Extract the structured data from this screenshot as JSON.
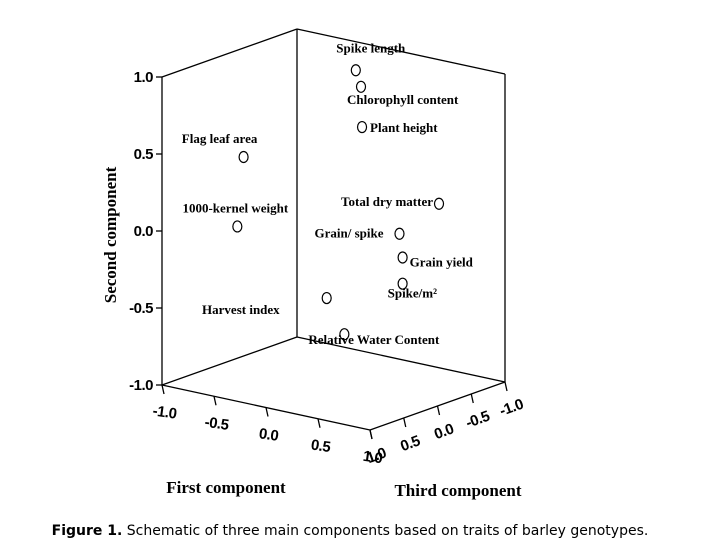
{
  "chart_data": {
    "type": "scatter3d",
    "x_label": "First component",
    "y_label": "Second component",
    "z_label": "Third component",
    "xlim": [
      -1,
      1
    ],
    "ylim": [
      -1,
      1
    ],
    "zlim": [
      -1,
      1
    ],
    "xticks": [
      {
        "value": -1,
        "label": "-1.0"
      },
      {
        "value": -0.5,
        "label": "-0.5"
      },
      {
        "value": 0,
        "label": "0.0"
      },
      {
        "value": 0.5,
        "label": "0.5"
      },
      {
        "value": 1,
        "label": "1.0"
      }
    ],
    "yticks": [
      {
        "value": -1,
        "label": "-1.0"
      },
      {
        "value": -0.5,
        "label": "-0.5"
      },
      {
        "value": 0,
        "label": "0.0"
      },
      {
        "value": 0.5,
        "label": "0.5"
      },
      {
        "value": 1,
        "label": "1.0"
      }
    ],
    "zticks": [
      {
        "value": 1,
        "label": "1.0"
      },
      {
        "value": 0.5,
        "label": "0.5"
      },
      {
        "value": 0,
        "label": "0.0"
      },
      {
        "value": -0.5,
        "label": "-0.5"
      },
      {
        "value": -1,
        "label": "-1.0"
      }
    ],
    "points": [
      {
        "label": "Spike length",
        "x": -0.11,
        "y": 0.94,
        "z": -0.5
      },
      {
        "label": "Chlorophyll content",
        "x": -0.06,
        "y": 0.84,
        "z": -0.5
      },
      {
        "label": "Plant height",
        "x": -0.05,
        "y": 0.58,
        "z": -0.5
      },
      {
        "label": "Flag leaf area",
        "x": -0.54,
        "y": 0.47,
        "z": 0.5
      },
      {
        "label": "1000-kernel weight",
        "x": -0.6,
        "y": 0.01,
        "z": 0.5
      },
      {
        "label": "Total dry matter",
        "x": 0.69,
        "y": 0.19,
        "z": -0.5
      },
      {
        "label": "Grain/ spike",
        "x": 0.31,
        "y": -0.06,
        "z": -0.5
      },
      {
        "label": "Grain yield",
        "x": 0.34,
        "y": -0.21,
        "z": -0.5
      },
      {
        "label": "Spike/m²",
        "x": 0.34,
        "y": -0.38,
        "z": -0.5
      },
      {
        "label": "Harvest index",
        "x": -0.39,
        "y": -0.58,
        "z": -0.5
      },
      {
        "label": "Relative Water Content",
        "x": -0.22,
        "y": -0.79,
        "z": -0.5
      }
    ]
  },
  "caption": {
    "label": "Figure 1.",
    "text": "Schematic of three main components based on traits of barley genotypes."
  }
}
